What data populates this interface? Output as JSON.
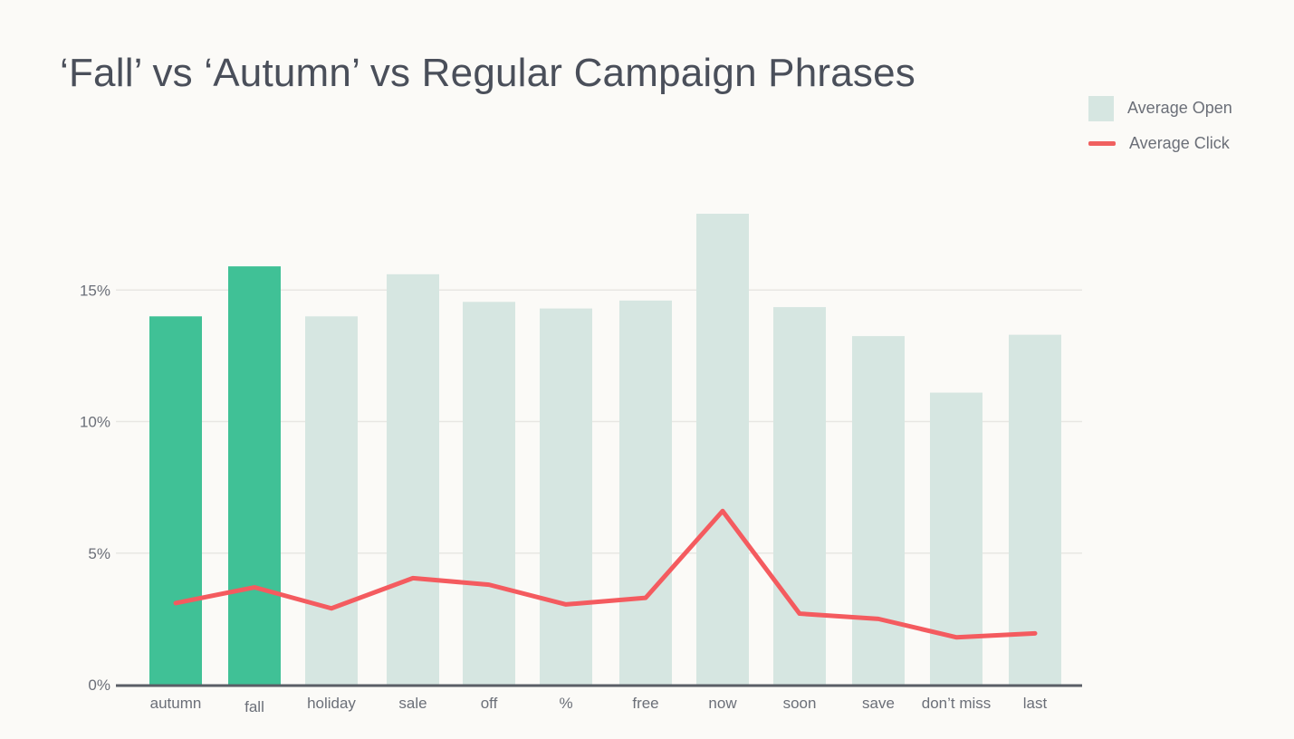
{
  "chart_data": {
    "type": "bar",
    "title": "‘Fall’ vs ‘Autumn’ vs Regular Campaign Phrases",
    "categories": [
      "autumn",
      "fall",
      "holiday",
      "sale",
      "off",
      "%",
      "free",
      "now",
      "soon",
      "save",
      "don’t miss",
      "last"
    ],
    "series": [
      {
        "name": "Average Open",
        "type": "bar",
        "values": [
          14.0,
          15.9,
          14.0,
          15.6,
          14.55,
          14.3,
          14.6,
          17.9,
          14.35,
          13.25,
          11.1,
          13.3
        ],
        "highlight": [
          true,
          true,
          false,
          false,
          false,
          false,
          false,
          false,
          false,
          false,
          false,
          false
        ]
      },
      {
        "name": "Average Click",
        "type": "line",
        "values": [
          3.1,
          3.7,
          2.9,
          4.05,
          3.8,
          3.05,
          3.3,
          6.6,
          2.7,
          2.5,
          1.8,
          1.95
        ]
      }
    ],
    "y_ticks": [
      "0%",
      "5%",
      "10%",
      "15%"
    ],
    "ylim": [
      0,
      18
    ],
    "grid": true,
    "legend_position": "top-right",
    "colors": {
      "highlight_bar": "#40c196",
      "bar": "#d6e6e1",
      "line": "#f45b5f",
      "grid": "#e8e7e3",
      "axis": "#5a5e66",
      "text": "#6b6f78",
      "title": "#4a4f5a"
    }
  }
}
